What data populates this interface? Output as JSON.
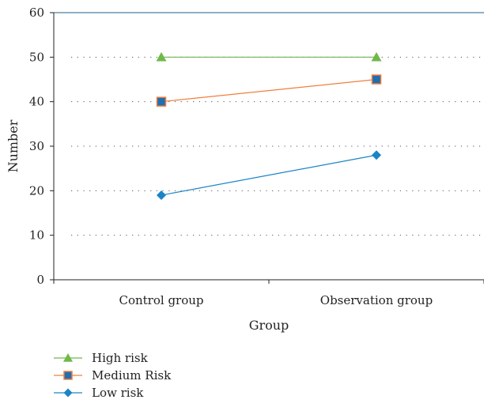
{
  "chart_data": {
    "type": "line",
    "categories": [
      "Control group",
      "Observation group"
    ],
    "series": [
      {
        "name": "High risk",
        "values": [
          50,
          50
        ],
        "color": "#70b84a",
        "marker": "triangle"
      },
      {
        "name": "Medium Risk",
        "values": [
          40,
          45
        ],
        "color": "#f07f3c",
        "marker": "square",
        "marker_fill": "#1f6fb2"
      },
      {
        "name": "Low risk",
        "values": [
          19,
          28
        ],
        "color": "#1b84c6",
        "marker": "diamond"
      }
    ],
    "xlabel": "Group",
    "ylabel": "Number",
    "ylim": [
      0,
      60
    ],
    "yticks": [
      0,
      10,
      20,
      30,
      40,
      50,
      60
    ],
    "grid": "horizontal dotted",
    "legend_position": "bottom-left"
  }
}
